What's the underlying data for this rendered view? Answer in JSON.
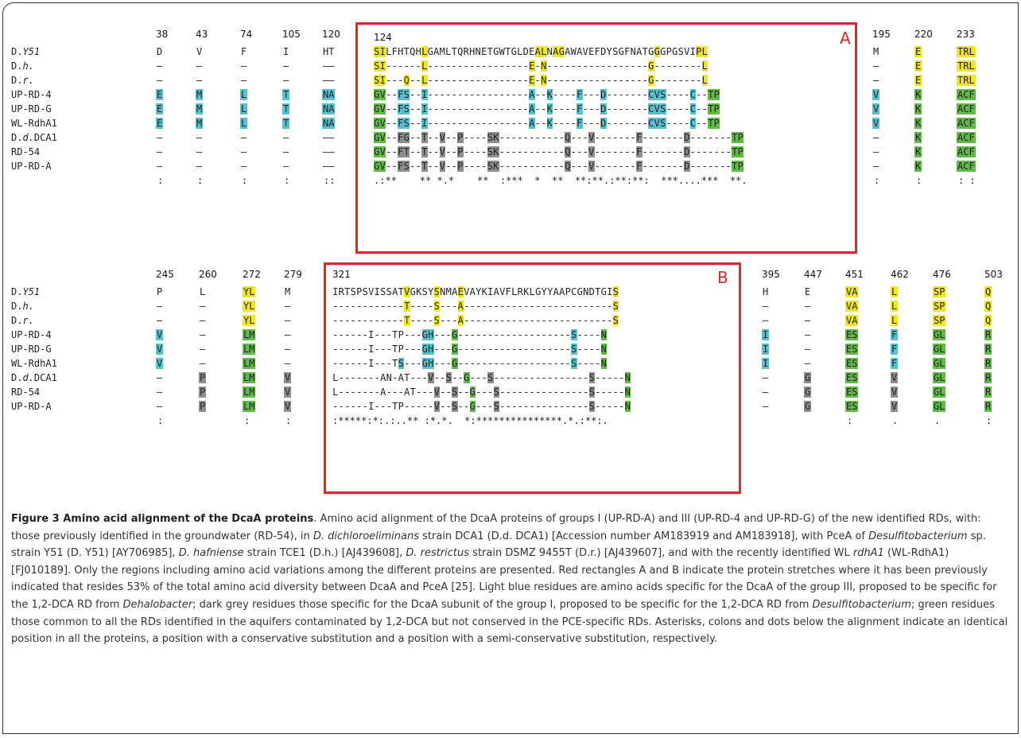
{
  "colors": {
    "Y": "#f0e81c",
    "B": "#55c2d0",
    "G": "#5fba46",
    "D": "#8e8e8e",
    "box": "#e0262b"
  },
  "boxes": {
    "A": "A",
    "B": "B"
  },
  "labels": [
    "D.Y51",
    "D.h.",
    "D.r.",
    "UP-RD-4",
    "UP-RD-G",
    "WL-RdhA1",
    "D.d.DCA1",
    "RD-54",
    "UP-RD-A"
  ],
  "panel1": {
    "left_cols": [
      {
        "pos": "38",
        "cells": [
          "D",
          "–",
          "–",
          "E",
          "E",
          "E",
          "–",
          "–",
          "–"
        ],
        "colors": [
          "",
          "",
          "",
          "B",
          "B",
          "B",
          "",
          "",
          ""
        ],
        "cons": ":"
      },
      {
        "pos": "43",
        "cells": [
          "V",
          "–",
          "–",
          "M",
          "M",
          "M",
          "–",
          "–",
          "–"
        ],
        "colors": [
          "",
          "",
          "",
          "B",
          "B",
          "B",
          "",
          "",
          ""
        ],
        "cons": ":"
      },
      {
        "pos": "74",
        "cells": [
          "F",
          "–",
          "–",
          "L",
          "L",
          "L",
          "–",
          "–",
          "–"
        ],
        "colors": [
          "",
          "",
          "",
          "B",
          "B",
          "B",
          "",
          "",
          ""
        ],
        "cons": ":"
      },
      {
        "pos": "105",
        "cells": [
          "I",
          "–",
          "–",
          "T",
          "T",
          "T",
          "–",
          "–",
          "–"
        ],
        "colors": [
          "",
          "",
          "",
          "B",
          "B",
          "B",
          "",
          "",
          ""
        ],
        "cons": ":"
      },
      {
        "pos": "120",
        "cells": [
          "HT",
          "––",
          "––",
          "NA",
          "NA",
          "NA",
          "––",
          "––",
          "––"
        ],
        "colors": [
          "",
          "",
          "",
          "B",
          "B",
          "B",
          "",
          "",
          ""
        ],
        "cons": "::"
      }
    ],
    "block": {
      "pos": "124",
      "rows": [
        "SILFHTQHLGAMLTQRHNETGWTGLDEALNAGAWAVEFDYSGFNATGGGPGSVIPL",
        "SI------L-----------------E-N-----------------G--------L",
        "SI---Q--L-----------------E-N-----------------G--------L",
        "GV--FS--I-----------------A--K----F---D-------CVS----C--TP",
        "GV--FS--I-----------------A--K----F---D-------CVS----C--TP",
        "GV--FS--I-----------------A--K----F---D-------CVS----C--TP",
        "GV--FG--T--V--P----SK-----------Q---V-------F-------D-------TP",
        "GV--FT--T--V--P----SK-----------Q---V-------F-------D-------TP",
        "GV--FS--T--V--P----SK-----------Q---V-------F-------D-------TP"
      ],
      "cons": ".:**    ** *.*    **  :***  *  **  **:**.:**:**:  ***....***  **."
    },
    "right_cols": [
      {
        "pos": "195",
        "cells": [
          "M",
          "–",
          "–",
          "V",
          "V",
          "V",
          "–",
          "–",
          "–"
        ],
        "colors": [
          "",
          "",
          "",
          "B",
          "B",
          "B",
          "",
          "",
          ""
        ],
        "cons": ":"
      },
      {
        "pos": "220",
        "cells": [
          "E",
          "E",
          "E",
          "K",
          "K",
          "K",
          "K",
          "K",
          "K"
        ],
        "colors": [
          "Y",
          "Y",
          "Y",
          "G",
          "G",
          "G",
          "G",
          "G",
          "G"
        ],
        "cons": ":"
      },
      {
        "pos": "233",
        "cells": [
          "TRL",
          "TRL",
          "TRL",
          "ACF",
          "ACF",
          "ACF",
          "ACF",
          "ACF",
          "ACF"
        ],
        "colors": [
          "Y",
          "Y",
          "Y",
          "G",
          "G",
          "G",
          "G",
          "G",
          "G"
        ],
        "cons": ": :"
      }
    ]
  },
  "panel2": {
    "left_cols": [
      {
        "pos": "245",
        "cells": [
          "P",
          "–",
          "–",
          "V",
          "V",
          "V",
          "–",
          "–",
          "–"
        ],
        "colors": [
          "",
          "",
          "",
          "B",
          "B",
          "B",
          "",
          "",
          ""
        ],
        "cons": ":"
      },
      {
        "pos": "260",
        "cells": [
          "L",
          "–",
          "–",
          "–",
          "–",
          "–",
          "P",
          "P",
          "P"
        ],
        "colors": [
          "",
          "",
          "",
          "",
          "",
          "",
          "D",
          "D",
          "D"
        ],
        "cons": ""
      },
      {
        "pos": "272",
        "cells": [
          "YL",
          "YL",
          "YL",
          "LM",
          "LM",
          "LM",
          "LM",
          "LM",
          "LM"
        ],
        "colors": [
          "Y",
          "Y",
          "Y",
          "G",
          "G",
          "G",
          "G",
          "G",
          "G"
        ],
        "cons": ":"
      },
      {
        "pos": "279",
        "cells": [
          "M",
          "–",
          "–",
          "–",
          "–",
          "–",
          "V",
          "V",
          "V"
        ],
        "colors": [
          "",
          "",
          "",
          "",
          "",
          "",
          "D",
          "D",
          "D"
        ],
        "cons": ":"
      }
    ],
    "block": {
      "pos": "321",
      "cons": ":*****:*:.:..** :*.*.  *:***************.*.:**:."
    },
    "right_cols": [
      {
        "pos": "395",
        "cells": [
          "H",
          "–",
          "–",
          "I",
          "I",
          "I",
          "–",
          "–",
          "–"
        ],
        "colors": [
          "",
          "",
          "",
          "B",
          "B",
          "B",
          "",
          "",
          ""
        ],
        "cons": ""
      },
      {
        "pos": "447",
        "cells": [
          "E",
          "–",
          "–",
          "–",
          "–",
          "–",
          "G",
          "G",
          "G"
        ],
        "colors": [
          "",
          "",
          "",
          "",
          "",
          "",
          "D",
          "D",
          "D"
        ],
        "cons": ""
      },
      {
        "pos": "451",
        "cells": [
          "VA",
          "VA",
          "VA",
          "ES",
          "ES",
          "ES",
          "ES",
          "ES",
          "ES"
        ],
        "colors": [
          "Y",
          "Y",
          "Y",
          "G",
          "G",
          "G",
          "G",
          "G",
          "G"
        ],
        "cons": ":"
      },
      {
        "pos": "462",
        "cells": [
          "L",
          "L",
          "L",
          "F",
          "F",
          "F",
          "V",
          "V",
          "V"
        ],
        "colors": [
          "Y",
          "Y",
          "Y",
          "B",
          "B",
          "B",
          "D",
          "D",
          "D"
        ],
        "cons": "."
      },
      {
        "pos": "476",
        "cells": [
          "SP",
          "SP",
          "SP",
          "GL",
          "GL",
          "GL",
          "GL",
          "GL",
          "GL"
        ],
        "colors": [
          "Y",
          "Y",
          "Y",
          "G",
          "G",
          "G",
          "G",
          "G",
          "G"
        ],
        "cons": "."
      },
      {
        "pos": "503",
        "cells": [
          "Q",
          "Q",
          "Q",
          "R",
          "R",
          "R",
          "R",
          "R",
          "R"
        ],
        "colors": [
          "Y",
          "Y",
          "Y",
          "G",
          "G",
          "G",
          "G",
          "G",
          "G"
        ],
        "cons": ":"
      }
    ]
  },
  "caption": {
    "title": "Figure 3 Amino acid alignment of the DcaA proteins",
    "p1": ". Amino acid alignment of the DcaA proteins of groups I (UP-RD-A) and III (UP-RD-4 and UP-RD-G) of the new identified RDs, with: those previously identified in the groundwater (RD-54), in ",
    "i1": "D. dichloroeliminans",
    "p2": " strain DCA1 (D.d. DCA1) [Accession number AM183919 and AM183918], with PceA of ",
    "i2": "Desulfitobacterium",
    "p3": " sp. strain Y51 (D. Y51) [AY706985], ",
    "i3": "D. hafniense",
    "p4": " strain TCE1 (D.h.) [AJ439608], ",
    "i4": "D. restrictus",
    "p5": " strain DSMZ 9455T (D.r.) [AJ439607], and with the recently identified WL ",
    "i5": "rdhA1",
    "p6": " (WL-RdhA1) [FJ010189]. Only the regions including amino acid variations among the different proteins are presented. Red rectangles A and B indicate the protein stretches where it has been previously indicated that resides 53% of the total amino acid diversity between DcaA and PceA [25]. Light blue residues are amino acids specific for the DcaA of the group III, proposed to be specific for the 1,2-DCA RD from ",
    "i6": "Dehalobacter",
    "p7": "; dark grey residues those specific for the DcaA subunit of the group I, proposed to be specific for the 1,2-DCA RD from ",
    "i7": "Desulfitobacterium",
    "p8": "; green residues those common to all the RDs identified in the aquifers contaminated by 1,2-DCA but not conserved in the PCE-specific RDs. Asterisks, colons and dots below the alignment indicate an identical position in all the proteins, a position with a conservative substitution and a position with a semi-conservative substitution, respectively."
  }
}
